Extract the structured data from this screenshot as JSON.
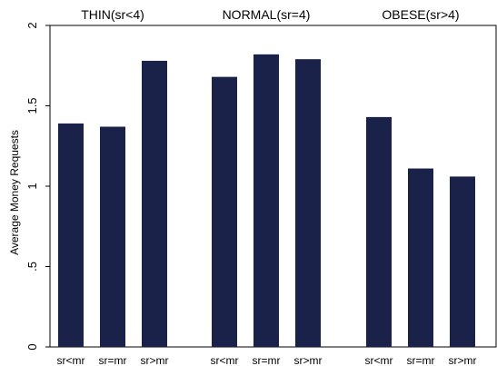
{
  "chart_data": {
    "type": "bar",
    "ylabel": "Average Money Requests",
    "ylim": [
      0,
      2
    ],
    "yticks": [
      {
        "value": 0,
        "label": "0"
      },
      {
        "value": 0.5,
        "label": ".5"
      },
      {
        "value": 1,
        "label": "1"
      },
      {
        "value": 1.5,
        "label": "1.5"
      },
      {
        "value": 2,
        "label": "2"
      }
    ],
    "bar_color": "#1b2249",
    "groups": [
      {
        "title": "THIN(sr<4)",
        "categories": [
          "sr<mr",
          "sr=mr",
          "sr>mr"
        ],
        "values": [
          1.39,
          1.37,
          1.78
        ]
      },
      {
        "title": "NORMAL(sr=4)",
        "categories": [
          "sr<mr",
          "sr=mr",
          "sr>mr"
        ],
        "values": [
          1.68,
          1.82,
          1.79
        ]
      },
      {
        "title": "OBESE(sr>4)",
        "categories": [
          "sr<mr",
          "sr=mr",
          "sr>mr"
        ],
        "values": [
          1.43,
          1.11,
          1.06
        ]
      }
    ]
  }
}
